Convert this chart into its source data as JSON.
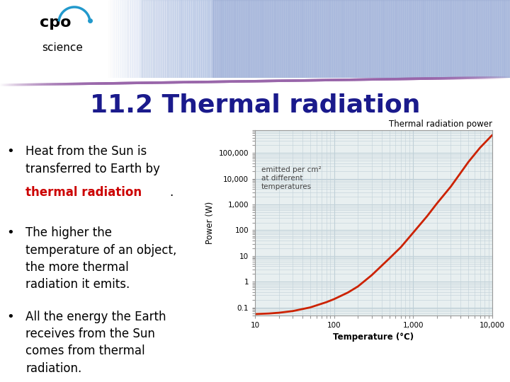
{
  "title": "11.2 Thermal radiation",
  "title_color": "#1a1a8c",
  "title_fontsize": 26,
  "bg_color": "#ffffff",
  "bullet_fontsize": 12,
  "graph_title": "Thermal radiation power",
  "graph_xlabel": "Temperature (°C)",
  "graph_ylabel": "Power (W)",
  "graph_annotation": "emitted per cm²\nat different\ntemperatures",
  "graph_x": [
    10,
    15,
    20,
    30,
    50,
    80,
    100,
    150,
    200,
    300,
    500,
    700,
    1000,
    1500,
    2000,
    3000,
    5000,
    7000,
    10000
  ],
  "graph_y": [
    0.055,
    0.058,
    0.062,
    0.072,
    0.1,
    0.16,
    0.21,
    0.38,
    0.65,
    1.8,
    8.0,
    22.0,
    80.0,
    350.0,
    1100.0,
    5000.0,
    45000.0,
    160000.0,
    500000.0
  ],
  "graph_line_color": "#cc2200",
  "graph_bg": "#e8eff0",
  "graph_grid_color": "#c0d0d8",
  "banner_left_color": "#ffffff",
  "banner_photo_color1": "#b8c8e8",
  "banner_photo_color2": "#8899cc",
  "accent_color": "#9966aa",
  "logo_cpo_color": "#000000",
  "logo_arc_color": "#2299cc",
  "logo_dot_color": "#2299cc"
}
